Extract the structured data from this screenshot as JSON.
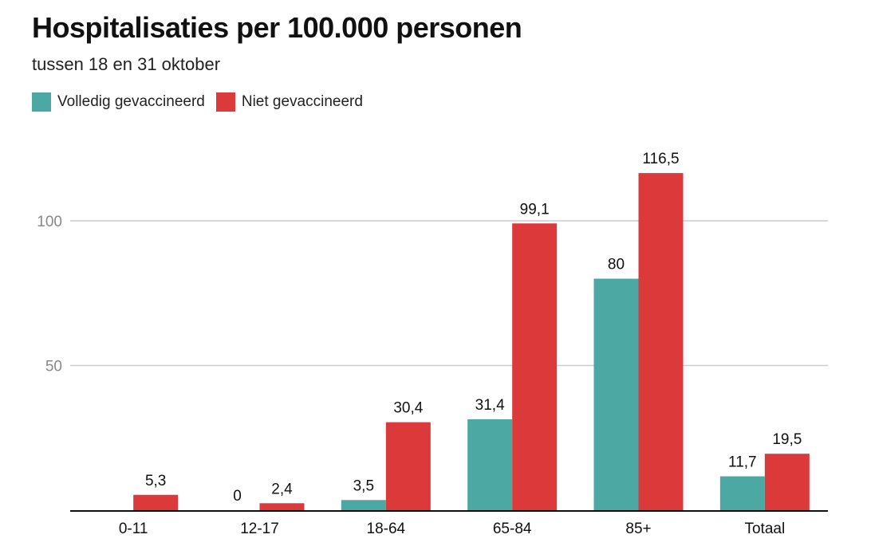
{
  "chart_data": {
    "type": "bar",
    "title": "Hospitalisaties per 100.000 personen",
    "subtitle": "tussen 18 en 31 oktober",
    "categories": [
      "0-11",
      "12-17",
      "18-64",
      "65-84",
      "85+",
      "Totaal"
    ],
    "series": [
      {
        "name": "Volledig gevaccineerd",
        "color": "#4ba8a2",
        "values": [
          null,
          0,
          3.5,
          31.4,
          80,
          11.7
        ],
        "labels": [
          "",
          "0",
          "3,5",
          "31,4",
          "80",
          "11,7"
        ]
      },
      {
        "name": "Niet gevaccineerd",
        "color": "#dc393b",
        "values": [
          5.3,
          2.4,
          30.4,
          99.1,
          116.5,
          19.5
        ],
        "labels": [
          "5,3",
          "2,4",
          "30,4",
          "99,1",
          "116,5",
          "19,5"
        ]
      }
    ],
    "yticks": [
      50,
      100
    ],
    "ylim": [
      0,
      125
    ],
    "grid": true,
    "xlabel": "",
    "ylabel": "",
    "legend": "top-left"
  }
}
